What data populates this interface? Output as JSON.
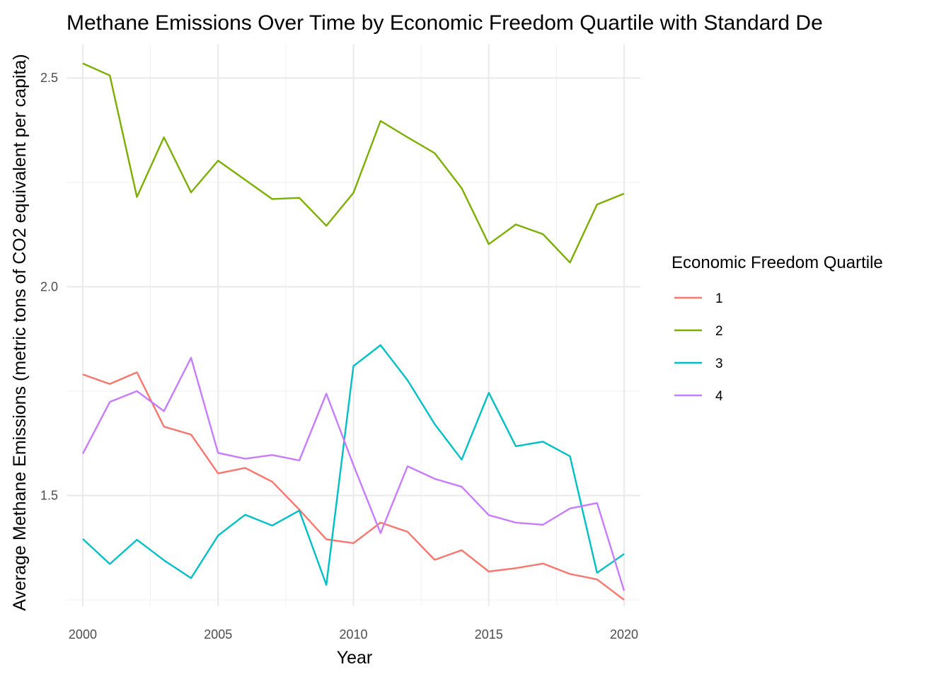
{
  "chart_data": {
    "type": "line",
    "title": "Methane Emissions Over Time by Economic Freedom Quartile with Standard De",
    "xlabel": "Year",
    "ylabel": "Average Methane Emissions (metric tons of CO2 equivalent per capita)",
    "xlim": [
      1999.4,
      2020.6
    ],
    "ylim": [
      1.235,
      2.58
    ],
    "x_ticks": [
      2000,
      2005,
      2010,
      2015,
      2020
    ],
    "y_ticks": [
      1.5,
      2.0,
      2.5
    ],
    "x_tick_labels": [
      "2000",
      "2005",
      "2010",
      "2015",
      "2020"
    ],
    "y_tick_labels": [
      "1.5",
      "2.0",
      "2.5"
    ],
    "grid": true,
    "legend": {
      "title": "Economic Freedom Quartile",
      "position": "right"
    },
    "x": [
      2000,
      2001,
      2002,
      2003,
      2004,
      2005,
      2006,
      2007,
      2008,
      2009,
      2010,
      2011,
      2012,
      2013,
      2014,
      2015,
      2016,
      2017,
      2018,
      2019,
      2020
    ],
    "series": [
      {
        "name": "1",
        "color": "#F8766D",
        "values": [
          1.79,
          1.767,
          1.795,
          1.665,
          1.646,
          1.553,
          1.566,
          1.533,
          1.466,
          1.395,
          1.386,
          1.435,
          1.413,
          1.346,
          1.369,
          1.318,
          1.326,
          1.337,
          1.312,
          1.299,
          1.25
        ]
      },
      {
        "name": "2",
        "color": "#7CAE00",
        "values": [
          2.535,
          2.506,
          2.215,
          2.358,
          2.226,
          2.302,
          2.256,
          2.21,
          2.213,
          2.146,
          2.225,
          2.397,
          2.358,
          2.32,
          2.236,
          2.102,
          2.149,
          2.126,
          2.058,
          2.197,
          2.223
        ]
      },
      {
        "name": "3",
        "color": "#00BFC4",
        "values": [
          1.396,
          1.336,
          1.394,
          1.345,
          1.302,
          1.404,
          1.454,
          1.428,
          1.464,
          1.286,
          1.81,
          1.86,
          1.776,
          1.671,
          1.586,
          1.746,
          1.618,
          1.629,
          1.594,
          1.315,
          1.36
        ]
      },
      {
        "name": "4",
        "color": "#C77CFF",
        "values": [
          1.6,
          1.724,
          1.75,
          1.702,
          1.83,
          1.602,
          1.588,
          1.597,
          1.584,
          1.744,
          1.573,
          1.41,
          1.57,
          1.54,
          1.521,
          1.453,
          1.435,
          1.43,
          1.469,
          1.482,
          1.272
        ]
      }
    ]
  }
}
